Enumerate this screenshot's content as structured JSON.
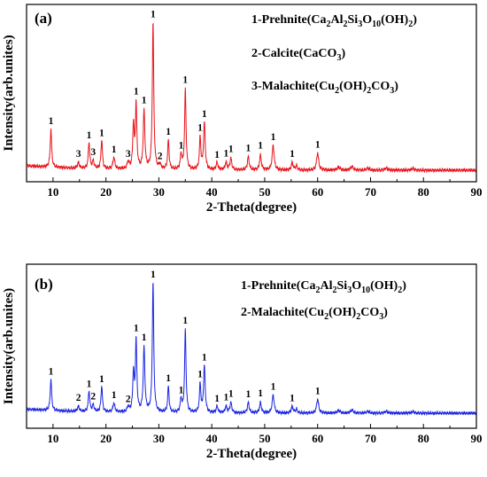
{
  "chart_data": [
    {
      "panel": "(a)",
      "type": "line",
      "xlabel": "2-Theta(degree)",
      "ylabel": "Intensity(arb.unites)",
      "xlim": [
        5,
        90
      ],
      "xticks": [
        "10",
        "20",
        "30",
        "40",
        "50",
        "60",
        "70",
        "80",
        "90"
      ],
      "line_color": "#e8141c",
      "legend": [
        {
          "num": "1",
          "name": "Prehnite",
          "parts": [
            [
              "(Ca",
              ""
            ],
            [
              "2",
              "sub"
            ],
            [
              "Al",
              ""
            ],
            [
              "2",
              "sub"
            ],
            [
              "Si",
              ""
            ],
            [
              "3",
              "sub"
            ],
            [
              "O",
              ""
            ],
            [
              "10",
              "sub"
            ],
            [
              "(OH)",
              ""
            ],
            [
              "2",
              "sub"
            ],
            [
              ")",
              ""
            ]
          ]
        },
        {
          "num": "2",
          "name": "Calcite",
          "parts": [
            [
              "(CaCO",
              ""
            ],
            [
              "3",
              "sub"
            ],
            [
              ")",
              ""
            ]
          ]
        },
        {
          "num": "3",
          "name": "Malachite",
          "parts": [
            [
              "(Cu",
              ""
            ],
            [
              "2",
              "sub"
            ],
            [
              "(OH)",
              ""
            ],
            [
              "2",
              "sub"
            ],
            [
              "CO",
              ""
            ],
            [
              "3",
              "sub"
            ],
            [
              ")",
              ""
            ]
          ]
        }
      ],
      "peaks": [
        {
          "x": 9.6,
          "h": 0.26,
          "w": 0.16,
          "label": "1"
        },
        {
          "x": 14.8,
          "h": 0.04,
          "w": 0.2,
          "label": "3"
        },
        {
          "x": 16.8,
          "h": 0.18,
          "w": 0.16,
          "label": "1"
        },
        {
          "x": 17.6,
          "h": 0.05,
          "w": 0.2,
          "label": "3"
        },
        {
          "x": 19.2,
          "h": 0.2,
          "w": 0.16,
          "label": "1"
        },
        {
          "x": 21.5,
          "h": 0.08,
          "w": 0.2,
          "label": "1"
        },
        {
          "x": 24.2,
          "h": 0.05,
          "w": 0.2,
          "label": "3"
        },
        {
          "x": 25.2,
          "h": 0.3,
          "w": 0.16,
          "label": ""
        },
        {
          "x": 25.7,
          "h": 0.44,
          "w": 0.16,
          "label": "1"
        },
        {
          "x": 27.2,
          "h": 0.4,
          "w": 0.18,
          "label": "1"
        },
        {
          "x": 28.9,
          "h": 1.0,
          "w": 0.16,
          "label": "1"
        },
        {
          "x": 30.2,
          "h": 0.03,
          "w": 0.2,
          "label": "2"
        },
        {
          "x": 31.8,
          "h": 0.2,
          "w": 0.16,
          "label": "1"
        },
        {
          "x": 34.2,
          "h": 0.1,
          "w": 0.18,
          "label": "1"
        },
        {
          "x": 35.0,
          "h": 0.55,
          "w": 0.16,
          "label": "1"
        },
        {
          "x": 37.8,
          "h": 0.22,
          "w": 0.16,
          "label": "1"
        },
        {
          "x": 38.6,
          "h": 0.32,
          "w": 0.18,
          "label": "1"
        },
        {
          "x": 41.0,
          "h": 0.05,
          "w": 0.2,
          "label": "1"
        },
        {
          "x": 42.7,
          "h": 0.05,
          "w": 0.2,
          "label": "1"
        },
        {
          "x": 43.6,
          "h": 0.08,
          "w": 0.2,
          "label": "1"
        },
        {
          "x": 46.9,
          "h": 0.09,
          "w": 0.2,
          "label": "1"
        },
        {
          "x": 49.2,
          "h": 0.1,
          "w": 0.2,
          "label": "1"
        },
        {
          "x": 51.6,
          "h": 0.17,
          "w": 0.22,
          "label": "1"
        },
        {
          "x": 55.2,
          "h": 0.05,
          "w": 0.2,
          "label": "1"
        },
        {
          "x": 56.0,
          "h": 0.03,
          "w": 0.2,
          "label": ""
        },
        {
          "x": 60.0,
          "h": 0.12,
          "w": 0.22,
          "label": "1"
        },
        {
          "x": 64.0,
          "h": 0.02,
          "w": 0.3,
          "label": ""
        },
        {
          "x": 66.5,
          "h": 0.025,
          "w": 0.3,
          "label": ""
        },
        {
          "x": 69.5,
          "h": 0.015,
          "w": 0.3,
          "label": ""
        },
        {
          "x": 73.0,
          "h": 0.015,
          "w": 0.3,
          "label": ""
        },
        {
          "x": 78.0,
          "h": 0.012,
          "w": 0.3,
          "label": ""
        }
      ]
    },
    {
      "panel": "(b)",
      "type": "line",
      "xlabel": "2-Theta(degree)",
      "ylabel": "Intensity(arb.unites)",
      "xlim": [
        5,
        90
      ],
      "xticks": [
        "10",
        "20",
        "30",
        "40",
        "50",
        "60",
        "70",
        "80",
        "90"
      ],
      "line_color": "#1a24e0",
      "legend": [
        {
          "num": "1",
          "name": "Prehnite",
          "parts": [
            [
              "(Ca",
              ""
            ],
            [
              "2",
              "sub"
            ],
            [
              "Al",
              ""
            ],
            [
              "2",
              "sub"
            ],
            [
              "Si",
              ""
            ],
            [
              "3",
              "sub"
            ],
            [
              "O",
              ""
            ],
            [
              "10",
              "sub"
            ],
            [
              "(OH)",
              ""
            ],
            [
              "2",
              "sub"
            ],
            [
              ")",
              ""
            ]
          ]
        },
        {
          "num": "2",
          "name": "Malachite",
          "parts": [
            [
              "(Cu",
              ""
            ],
            [
              "2",
              "sub"
            ],
            [
              "(OH)",
              ""
            ],
            [
              "2",
              "sub"
            ],
            [
              "CO",
              ""
            ],
            [
              "3",
              "sub"
            ],
            [
              ")",
              ""
            ]
          ]
        }
      ],
      "peaks": [
        {
          "x": 9.6,
          "h": 0.24,
          "w": 0.16,
          "label": "1"
        },
        {
          "x": 14.8,
          "h": 0.04,
          "w": 0.2,
          "label": "2"
        },
        {
          "x": 16.8,
          "h": 0.16,
          "w": 0.16,
          "label": "1"
        },
        {
          "x": 17.6,
          "h": 0.05,
          "w": 0.2,
          "label": "2"
        },
        {
          "x": 19.2,
          "h": 0.2,
          "w": 0.16,
          "label": "1"
        },
        {
          "x": 21.5,
          "h": 0.07,
          "w": 0.2,
          "label": "1"
        },
        {
          "x": 24.2,
          "h": 0.04,
          "w": 0.2,
          "label": "2"
        },
        {
          "x": 25.2,
          "h": 0.3,
          "w": 0.16,
          "label": ""
        },
        {
          "x": 25.7,
          "h": 0.55,
          "w": 0.16,
          "label": "1"
        },
        {
          "x": 27.2,
          "h": 0.5,
          "w": 0.18,
          "label": "1"
        },
        {
          "x": 28.9,
          "h": 1.0,
          "w": 0.16,
          "label": "1"
        },
        {
          "x": 31.8,
          "h": 0.2,
          "w": 0.16,
          "label": "1"
        },
        {
          "x": 34.2,
          "h": 0.1,
          "w": 0.18,
          "label": "1"
        },
        {
          "x": 35.0,
          "h": 0.64,
          "w": 0.16,
          "label": "1"
        },
        {
          "x": 37.8,
          "h": 0.22,
          "w": 0.16,
          "label": "1"
        },
        {
          "x": 38.6,
          "h": 0.36,
          "w": 0.18,
          "label": "1"
        },
        {
          "x": 41.0,
          "h": 0.05,
          "w": 0.2,
          "label": "1"
        },
        {
          "x": 42.7,
          "h": 0.05,
          "w": 0.2,
          "label": "1"
        },
        {
          "x": 43.6,
          "h": 0.08,
          "w": 0.2,
          "label": "1"
        },
        {
          "x": 46.9,
          "h": 0.08,
          "w": 0.2,
          "label": "1"
        },
        {
          "x": 49.2,
          "h": 0.08,
          "w": 0.2,
          "label": "1"
        },
        {
          "x": 51.6,
          "h": 0.14,
          "w": 0.22,
          "label": "1"
        },
        {
          "x": 55.2,
          "h": 0.05,
          "w": 0.2,
          "label": "1"
        },
        {
          "x": 56.0,
          "h": 0.03,
          "w": 0.2,
          "label": ""
        },
        {
          "x": 60.0,
          "h": 0.11,
          "w": 0.22,
          "label": "1"
        },
        {
          "x": 64.0,
          "h": 0.02,
          "w": 0.3,
          "label": ""
        },
        {
          "x": 66.5,
          "h": 0.025,
          "w": 0.3,
          "label": ""
        },
        {
          "x": 69.5,
          "h": 0.015,
          "w": 0.3,
          "label": ""
        },
        {
          "x": 73.0,
          "h": 0.015,
          "w": 0.3,
          "label": ""
        },
        {
          "x": 78.0,
          "h": 0.012,
          "w": 0.3,
          "label": ""
        }
      ]
    }
  ]
}
